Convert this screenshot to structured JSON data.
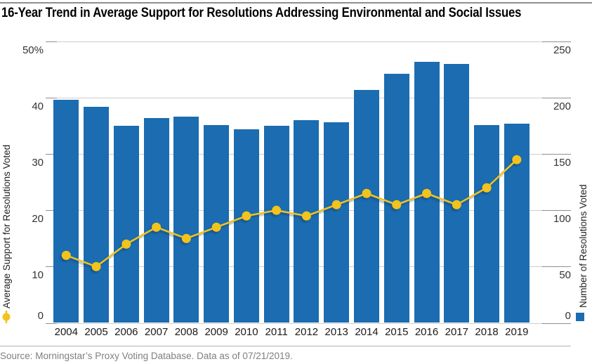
{
  "chart_data": {
    "type": "combo-bar-line",
    "title": "16-Year Trend in Average Support for Resolutions Addressing Environmental and Social Issues",
    "source": "Source: Morningstar’s Proxy Voting Database. Data as of 07/21/2019.",
    "categories": [
      "2004",
      "2005",
      "2006",
      "2007",
      "2008",
      "2009",
      "2010",
      "2011",
      "2012",
      "2013",
      "2014",
      "2015",
      "2016",
      "2017",
      "2018",
      "2019"
    ],
    "series": [
      {
        "name": "Number of Resolutions Voted",
        "type": "bar",
        "axis": "right",
        "color": "#1b6cb0",
        "values": [
          198,
          192,
          175,
          182,
          183,
          176,
          172,
          175,
          180,
          178,
          207,
          221,
          232,
          230,
          176,
          177
        ]
      },
      {
        "name": "Average Support for Resolutions Voted",
        "type": "line",
        "axis": "left",
        "color": "#f2c31c",
        "values": [
          12,
          10,
          14,
          17,
          15,
          17,
          19,
          20,
          19,
          21,
          23,
          21,
          23,
          21,
          24,
          29
        ]
      }
    ],
    "left_axis": {
      "label": "Average Support for Resolutions Voted",
      "range": [
        0,
        50
      ],
      "ticks": [
        0,
        10,
        20,
        30,
        40,
        50
      ],
      "tick_labels": [
        "0",
        "10",
        "20",
        "30",
        "40",
        "50%"
      ]
    },
    "right_axis": {
      "label": "Number of Resolutions Voted",
      "range": [
        0,
        250
      ],
      "ticks": [
        0,
        50,
        100,
        150,
        200,
        250
      ],
      "tick_labels": [
        "0",
        "50",
        "100",
        "150",
        "200",
        "250"
      ]
    },
    "grid": true,
    "legend_position": "base-of-axis-titles"
  }
}
